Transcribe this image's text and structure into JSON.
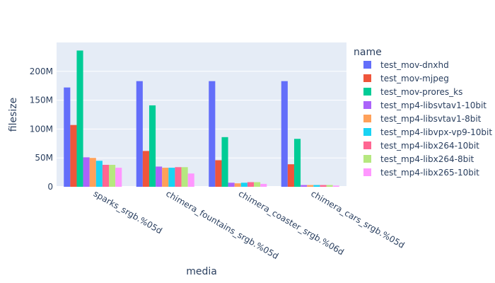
{
  "chart_data": {
    "type": "bar",
    "xlabel": "media",
    "ylabel": "filesize",
    "legend_title": "name",
    "legend_position": "right",
    "grid": true,
    "ylim": [
      0,
      250000000
    ],
    "yticks": [
      0,
      50000000,
      100000000,
      150000000,
      200000000
    ],
    "ytick_labels": [
      "0",
      "50M",
      "100M",
      "150M",
      "200M"
    ],
    "categories": [
      "sparks_srgb.%05d",
      "chimera_fountains_srgb.%05d",
      "chimera_coaster_srgb.%06d",
      "chimera_cars_srgb.%05d"
    ],
    "series": [
      {
        "name": "test_mov-dnxhd",
        "color": "#636efa",
        "values": [
          172000000,
          183000000,
          183000000,
          183000000
        ]
      },
      {
        "name": "test_mov-mjpeg",
        "color": "#EF553B",
        "values": [
          107000000,
          62000000,
          46000000,
          39000000
        ]
      },
      {
        "name": "test_mov-prores_ks",
        "color": "#00cc96",
        "values": [
          236000000,
          141000000,
          86000000,
          83000000
        ]
      },
      {
        "name": "test_mp4-libsvtav1-10bit",
        "color": "#ab63fa",
        "values": [
          51000000,
          35000000,
          7000000,
          3000000
        ]
      },
      {
        "name": "test_mp4-libsvtav1-8bit",
        "color": "#FFA15A",
        "values": [
          50000000,
          33000000,
          6000000,
          3000000
        ]
      },
      {
        "name": "test_mp4-libvpx-vp9-10bit",
        "color": "#19d3f3",
        "values": [
          45000000,
          33000000,
          7000000,
          3000000
        ]
      },
      {
        "name": "test_mp4-libx264-10bit",
        "color": "#FF6692",
        "values": [
          38000000,
          34000000,
          8000000,
          3000000
        ]
      },
      {
        "name": "test_mp4-libx264-8bit",
        "color": "#B6E880",
        "values": [
          38000000,
          34000000,
          8000000,
          3000000
        ]
      },
      {
        "name": "test_mp4-libx265-10bit",
        "color": "#FF97FF",
        "values": [
          33000000,
          23000000,
          5000000,
          2000000
        ]
      }
    ]
  }
}
